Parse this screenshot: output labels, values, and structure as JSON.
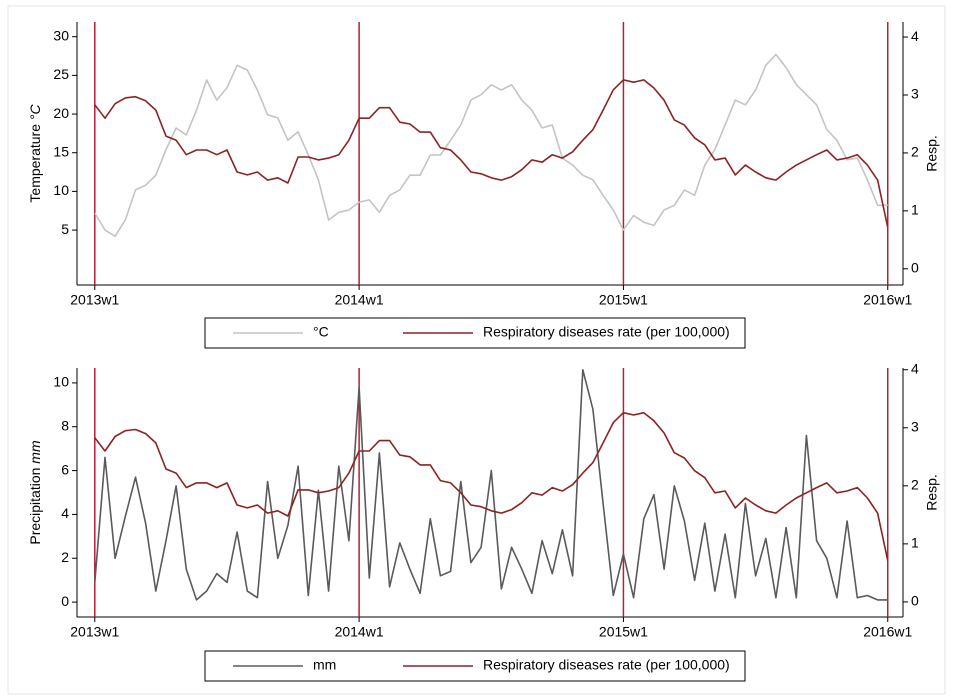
{
  "chart_data": [
    {
      "type": "line",
      "y_label": "Temperature",
      "y_label_unit": "°C",
      "y2_label": "Resp.",
      "x": [
        0,
        2,
        4,
        6,
        8,
        10,
        12,
        14,
        16,
        18,
        20,
        22,
        24,
        26,
        28,
        30,
        32,
        34,
        36,
        38,
        40,
        42,
        44,
        46,
        48,
        50,
        52,
        54,
        56,
        58,
        60,
        62,
        64,
        66,
        68,
        70,
        72,
        74,
        76,
        78,
        80,
        82,
        84,
        86,
        88,
        90,
        92,
        94,
        96,
        98,
        100,
        102,
        104,
        106,
        108,
        110,
        112,
        114,
        116,
        118,
        120,
        122,
        124,
        126,
        128,
        130,
        132,
        134,
        136,
        138,
        140,
        142,
        144,
        146,
        148,
        150,
        152,
        154,
        156
      ],
      "xlim": [
        -3.5,
        159
      ],
      "xticks": [
        {
          "value": 0,
          "label": "2013w1"
        },
        {
          "value": 52,
          "label": "2014w1"
        },
        {
          "value": 104,
          "label": "2015w1"
        },
        {
          "value": 156,
          "label": "2016w1"
        }
      ],
      "ylim": [
        -2.1,
        31.9
      ],
      "yticks": [
        5,
        10,
        15,
        20,
        25,
        30
      ],
      "y2lim": [
        -0.28,
        4.26
      ],
      "y2ticks": [
        0,
        1,
        2,
        3,
        4
      ],
      "xtick_lines": true,
      "xtick_line_color": "#b22234",
      "legend": "bottom",
      "series": [
        {
          "name": "°C",
          "color": "#c4c4c4",
          "values": [
            7.2,
            5.0,
            4.2,
            6.3,
            10.2,
            10.8,
            12.1,
            15.4,
            18.2,
            17.3,
            20.5,
            24.4,
            21.8,
            23.4,
            26.3,
            25.7,
            23.1,
            19.9,
            19.5,
            16.6,
            17.7,
            14.7,
            11.5,
            6.3,
            7.3,
            7.6,
            8.6,
            8.9,
            7.3,
            9.5,
            10.2,
            12.1,
            12.1,
            14.7,
            14.7,
            16.6,
            18.6,
            21.8,
            22.5,
            23.8,
            23.1,
            23.8,
            21.8,
            20.5,
            18.2,
            18.6,
            14.3,
            13.4,
            12.1,
            11.5,
            9.5,
            7.6,
            5.0,
            6.9,
            6.0,
            5.6,
            7.6,
            8.2,
            10.2,
            9.5,
            13.4,
            15.4,
            18.6,
            21.8,
            21.2,
            23.1,
            26.3,
            27.7,
            26.0,
            23.8,
            22.5,
            21.2,
            18.0,
            16.6,
            14.1,
            14.3,
            11.5,
            8.2,
            8.2
          ]
        },
        {
          "name": "Respiratory diseases rate (per 100,000)",
          "color": "#8b2323",
          "axis": "y2",
          "values": [
            2.83,
            2.6,
            2.85,
            2.95,
            2.97,
            2.9,
            2.74,
            2.29,
            2.22,
            1.97,
            2.05,
            2.05,
            1.97,
            2.05,
            1.67,
            1.62,
            1.67,
            1.53,
            1.57,
            1.48,
            1.93,
            1.93,
            1.88,
            1.91,
            1.97,
            2.22,
            2.6,
            2.6,
            2.78,
            2.78,
            2.53,
            2.5,
            2.36,
            2.36,
            2.09,
            2.05,
            1.88,
            1.67,
            1.64,
            1.57,
            1.53,
            1.59,
            1.71,
            1.88,
            1.84,
            1.97,
            1.91,
            2.02,
            2.22,
            2.4,
            2.74,
            3.09,
            3.26,
            3.22,
            3.26,
            3.12,
            2.91,
            2.57,
            2.48,
            2.26,
            2.14,
            1.88,
            1.91,
            1.62,
            1.79,
            1.67,
            1.57,
            1.53,
            1.67,
            1.79,
            1.88,
            1.97,
            2.05,
            1.88,
            1.91,
            1.97,
            1.79,
            1.53,
            0.71
          ]
        }
      ]
    },
    {
      "type": "line",
      "y_label": "Precipitation",
      "y_label_unit": "mm",
      "y2_label": "Resp.",
      "x": [
        0,
        2,
        4,
        6,
        8,
        10,
        12,
        14,
        16,
        18,
        20,
        22,
        24,
        26,
        28,
        30,
        32,
        34,
        36,
        38,
        40,
        42,
        44,
        46,
        48,
        50,
        52,
        54,
        56,
        58,
        60,
        62,
        64,
        66,
        68,
        70,
        72,
        74,
        76,
        78,
        80,
        82,
        84,
        86,
        88,
        90,
        92,
        94,
        96,
        98,
        100,
        102,
        104,
        106,
        108,
        110,
        112,
        114,
        116,
        118,
        120,
        122,
        124,
        126,
        128,
        130,
        132,
        134,
        136,
        138,
        140,
        142,
        144,
        146,
        148,
        150,
        152,
        154,
        156
      ],
      "xlim": [
        -3.5,
        159
      ],
      "xticks": [
        {
          "value": 0,
          "label": "2013w1"
        },
        {
          "value": 52,
          "label": "2014w1"
        },
        {
          "value": 104,
          "label": "2015w1"
        },
        {
          "value": 156,
          "label": "2016w1"
        }
      ],
      "ylim": [
        -0.68,
        10.68
      ],
      "yticks": [
        0,
        2,
        4,
        6,
        8,
        10
      ],
      "y2lim": [
        -0.26,
        4.03
      ],
      "y2ticks": [
        0,
        1,
        2,
        3,
        4
      ],
      "xtick_lines": true,
      "xtick_line_color": "#b22234",
      "legend": "bottom",
      "series": [
        {
          "name": "mm",
          "color": "#5a5a5a",
          "values": [
            0.9,
            6.6,
            2.0,
            3.9,
            5.7,
            3.6,
            0.5,
            2.8,
            5.3,
            1.5,
            0.1,
            0.5,
            1.3,
            0.9,
            3.2,
            0.5,
            0.2,
            5.5,
            2.0,
            3.5,
            6.2,
            0.3,
            5.1,
            0.5,
            6.2,
            2.8,
            9.8,
            1.1,
            6.8,
            0.7,
            2.7,
            1.5,
            0.4,
            3.8,
            1.2,
            1.4,
            5.5,
            1.8,
            2.5,
            6.0,
            0.6,
            2.5,
            1.5,
            0.4,
            2.8,
            1.3,
            3.3,
            1.2,
            10.6,
            8.8,
            4.5,
            0.3,
            2.2,
            0.2,
            3.8,
            4.9,
            1.5,
            5.3,
            3.7,
            1.0,
            3.6,
            0.5,
            3.1,
            0.2,
            4.5,
            1.2,
            2.9,
            0.2,
            3.4,
            0.2,
            7.6,
            2.8,
            2.0,
            0.2,
            3.7,
            0.2,
            0.3,
            0.1,
            0.1
          ]
        },
        {
          "name": "Respiratory diseases rate (per 100,000)",
          "color": "#8b2323",
          "axis": "y2",
          "values": [
            2.83,
            2.6,
            2.85,
            2.95,
            2.97,
            2.9,
            2.74,
            2.29,
            2.22,
            1.97,
            2.05,
            2.05,
            1.97,
            2.05,
            1.67,
            1.62,
            1.67,
            1.53,
            1.57,
            1.48,
            1.93,
            1.93,
            1.88,
            1.91,
            1.97,
            2.22,
            2.6,
            2.6,
            2.78,
            2.78,
            2.53,
            2.5,
            2.36,
            2.36,
            2.09,
            2.05,
            1.88,
            1.67,
            1.64,
            1.57,
            1.53,
            1.59,
            1.71,
            1.88,
            1.84,
            1.97,
            1.91,
            2.02,
            2.22,
            2.4,
            2.74,
            3.09,
            3.26,
            3.22,
            3.26,
            3.12,
            2.91,
            2.57,
            2.48,
            2.26,
            2.14,
            1.88,
            1.91,
            1.62,
            1.79,
            1.67,
            1.57,
            1.53,
            1.67,
            1.79,
            1.88,
            1.97,
            2.05,
            1.88,
            1.91,
            1.97,
            1.79,
            1.53,
            0.71
          ]
        }
      ]
    }
  ]
}
